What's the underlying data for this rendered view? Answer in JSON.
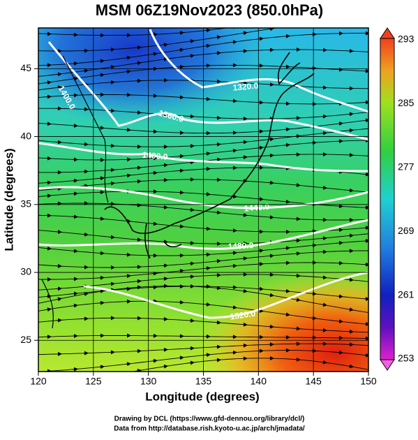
{
  "title": "MSM 06Z19Nov2023 (850.0hPa)",
  "x_axis": {
    "label": "Longitude (degrees)",
    "lim": [
      120,
      150
    ],
    "ticks": [
      120,
      125,
      130,
      135,
      140,
      145,
      150
    ]
  },
  "y_axis": {
    "label": "Latitude  (degrees)",
    "lim": [
      22.7,
      48
    ],
    "ticks": [
      25,
      30,
      35,
      40,
      45
    ]
  },
  "colorbar": {
    "lim": [
      253,
      293
    ],
    "ticks": [
      253,
      261,
      269,
      277,
      285,
      293
    ]
  },
  "contour_labels": [
    "1320.0",
    "1360.0",
    "1400.0",
    "1440.0",
    "1480.0",
    "1400.0",
    "1520.0"
  ],
  "credits": [
    "Drawing by DCL (https://www.gfd-dennou.org/library/dcl/)",
    "Data from http://database.rish.kyoto-u.ac.jp/arch/jmadata/"
  ]
}
